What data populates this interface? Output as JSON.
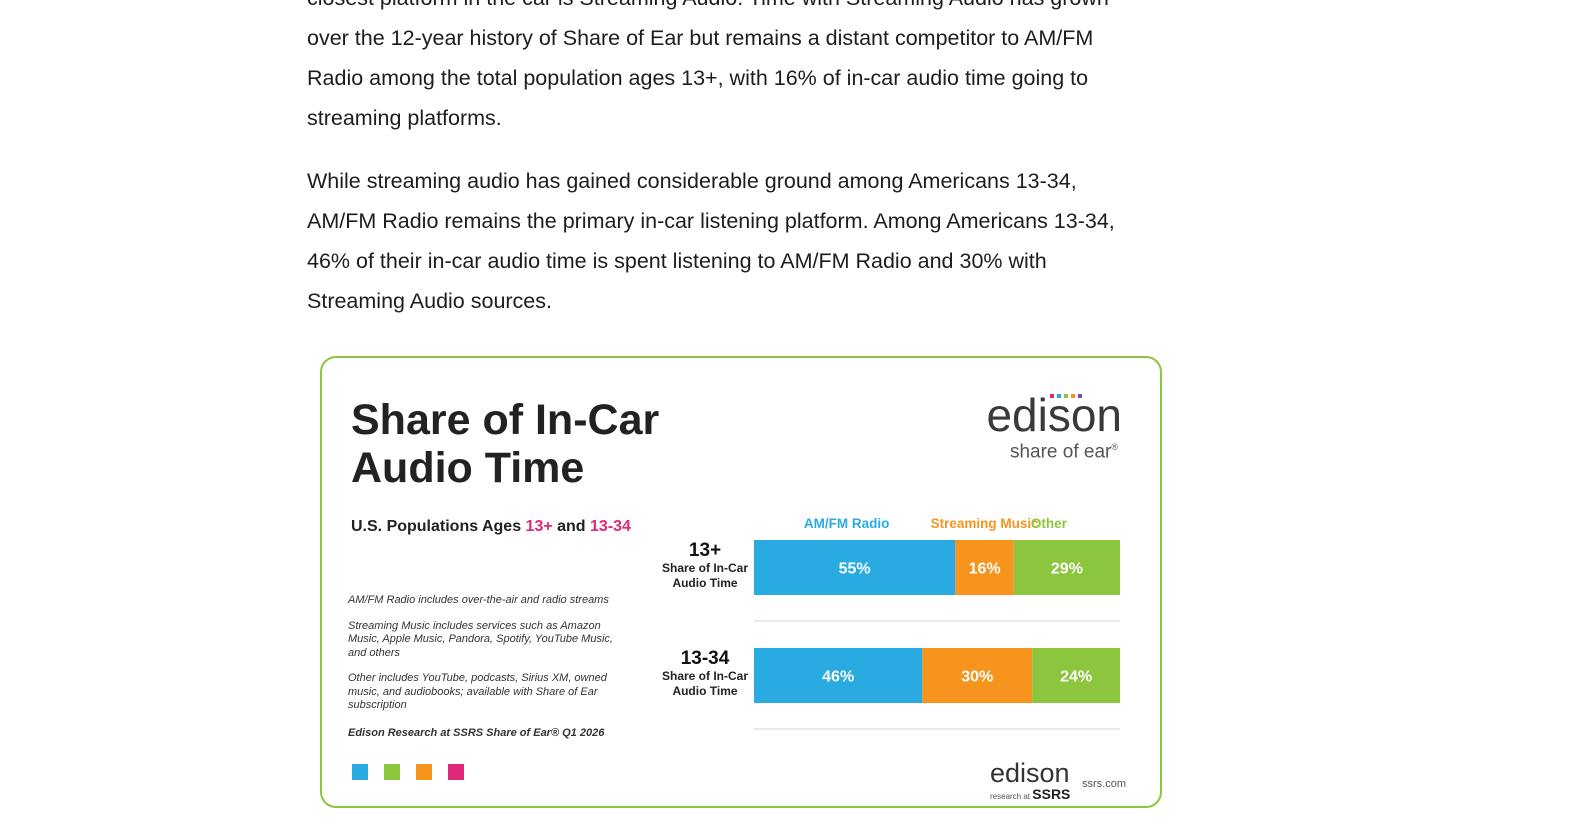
{
  "article": {
    "paragraphs": [
      "closest platform in the car is Streaming Audio. Time with Streaming Audio has grown",
      "over the 12-year history of Share of Ear but remains a distant competitor to AM/FM",
      "Radio among the total population ages 13+, with 16% of in-car audio time going to",
      "streaming platforms."
    ],
    "paragraph2": [
      "While streaming audio has gained considerable ground among Americans 13-34,",
      "AM/FM Radio remains the primary in-car listening platform. Among Americans 13-34,",
      "46% of their in-car audio time is spent listening to AM/FM Radio and 30% with",
      "Streaming Audio sources."
    ]
  },
  "card": {
    "title_line1": "Share of In-Car",
    "title_line2": "Audio Time",
    "logo_word": "edison",
    "logo_sub": "share of ear",
    "logo_reg": "®",
    "subhead_prefix": "U.S. Populations Ages ",
    "subhead_13plus": "13+",
    "subhead_and": " and ",
    "subhead_1334": "13-34",
    "notes": [
      "AM/FM Radio includes over-the-air and radio streams",
      "Streaming Music includes services such as Amazon Music, Apple Music, Pandora, Spotify, YouTube Music, and others",
      "Other includes YouTube, podcasts, Sirius XM, owned music, and audiobooks; available with Share of Ear subscription"
    ],
    "source": "Edison Research at SSRS Share of Ear® Q1 2026",
    "footer_word": "edison",
    "footer_sub": "research at",
    "footer_ssrs": "SSRS",
    "footer_url": "ssrs.com",
    "square_colors": [
      "#29abe2",
      "#8cc63f",
      "#f7941d",
      "#e0287a"
    ]
  },
  "chart_data": {
    "type": "bar",
    "stacked": true,
    "orientation": "horizontal",
    "unit": "%",
    "categories": [
      "13+",
      "13-34"
    ],
    "category_sublabel": "Share of In-Car Audio Time",
    "series": [
      {
        "name": "AM/FM Radio",
        "color": "#29abe2",
        "values": [
          55,
          46
        ]
      },
      {
        "name": "Streaming Music",
        "color": "#f7941d",
        "values": [
          16,
          30
        ]
      },
      {
        "name": "Other",
        "color": "#8cc63f",
        "values": [
          29,
          24
        ]
      }
    ],
    "xlim": [
      0,
      100
    ],
    "legend": "top"
  }
}
